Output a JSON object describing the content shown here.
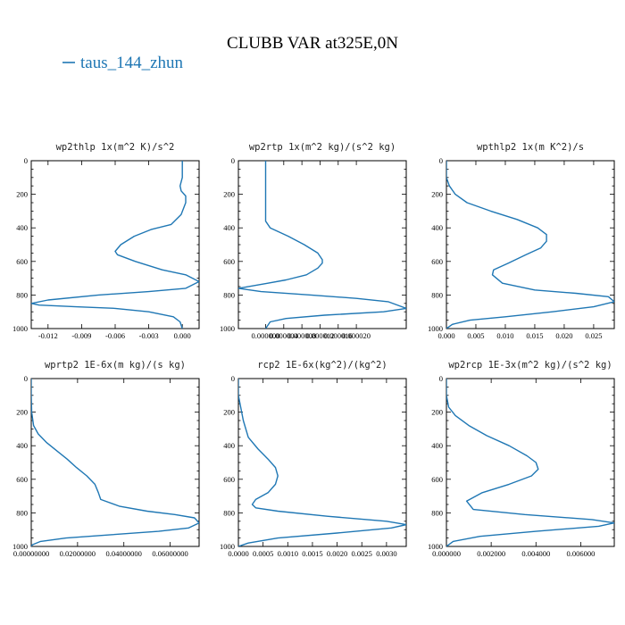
{
  "figure": {
    "title": "CLUBB VAR at325E,0N",
    "legend": {
      "label": "taus_144_zhun",
      "color": "#1f77b4",
      "placement": "top-left"
    }
  },
  "chart_data": [
    {
      "type": "line",
      "title": "wp2thlp  1x(m^2 K)/s^2",
      "xlim": [
        -0.0135,
        0.0015
      ],
      "ylim": [
        1000,
        0
      ],
      "xticks": [
        -0.012,
        -0.009,
        -0.006,
        -0.003,
        0.0
      ],
      "xtick_labels": [
        "-0.012",
        "-0.009",
        "-0.006",
        "-0.003",
        "0.000"
      ],
      "yticks": [
        0,
        200,
        400,
        600,
        800,
        1000
      ],
      "series": [
        {
          "x": [
            0.0,
            0.0,
            -0.0002,
            -0.0001,
            0.0003,
            0.0003,
            -0.0001,
            -0.001,
            -0.0028,
            -0.0043,
            -0.0055,
            -0.006,
            -0.0058,
            -0.0042,
            -0.0018,
            0.0003,
            0.0015,
            0.0003,
            -0.003,
            -0.0075,
            -0.012,
            -0.0135,
            -0.0128,
            -0.0095,
            -0.006,
            -0.003,
            -0.0008,
            -0.0002,
            0.0
          ],
          "y": [
            0,
            100,
            150,
            180,
            210,
            250,
            320,
            380,
            410,
            450,
            500,
            540,
            560,
            600,
            650,
            680,
            720,
            760,
            780,
            800,
            830,
            850,
            860,
            870,
            880,
            900,
            930,
            960,
            1000
          ]
        }
      ]
    },
    {
      "type": "line",
      "title": "wp2rtp  1x(m^2 kg)/(s^2 kg)",
      "xlim": [
        -6e-06,
        3.1e-05
      ],
      "ylim": [
        1000,
        0
      ],
      "xticks": [
        0.0,
        4e-06,
        8e-06,
        1.2e-05,
        1.6e-05,
        2e-05
      ],
      "xtick_labels": [
        "0.000000",
        "0.000004",
        "0.000008",
        "0.000012",
        "0.000016",
        "0.000020"
      ],
      "yticks": [
        0,
        200,
        400,
        600,
        800,
        1000
      ],
      "series": [
        {
          "x": [
            0.0,
            0.0,
            0.0,
            0.0,
            0.0,
            0.0,
            1e-06,
            5e-06,
            8.5e-06,
            1.15e-05,
            1.25e-05,
            1.25e-05,
            1.15e-05,
            9e-06,
            4.5e-06,
            5e-07,
            -6e-06,
            -1e-06,
            1e-05,
            2e-05,
            2.7e-05,
            3.1e-05,
            2.6e-05,
            1.3e-05,
            4.5e-06,
            1e-06,
            0.0
          ],
          "y": [
            0,
            100,
            200,
            280,
            320,
            360,
            400,
            450,
            500,
            550,
            590,
            610,
            640,
            680,
            710,
            730,
            760,
            780,
            800,
            820,
            840,
            880,
            900,
            920,
            940,
            960,
            1000
          ]
        }
      ]
    },
    {
      "type": "line",
      "title": "wpthlp2  1x(m K^2)/s",
      "xlim": [
        0.0,
        0.0285
      ],
      "ylim": [
        1000,
        0
      ],
      "xticks": [
        0.0,
        0.005,
        0.01,
        0.015,
        0.02,
        0.025
      ],
      "xtick_labels": [
        "0.000",
        "0.005",
        "0.010",
        "0.015",
        "0.020",
        "0.025"
      ],
      "yticks": [
        0,
        200,
        400,
        600,
        800,
        1000
      ],
      "series": [
        {
          "x": [
            0.0,
            0.0,
            0.0005,
            0.0015,
            0.0035,
            0.0075,
            0.012,
            0.0155,
            0.017,
            0.017,
            0.016,
            0.0135,
            0.0105,
            0.008,
            0.0078,
            0.0095,
            0.015,
            0.022,
            0.0275,
            0.0285,
            0.025,
            0.018,
            0.01,
            0.004,
            0.001,
            0.0
          ],
          "y": [
            0,
            100,
            150,
            200,
            250,
            300,
            350,
            400,
            440,
            480,
            520,
            560,
            610,
            650,
            680,
            730,
            770,
            790,
            810,
            840,
            870,
            900,
            930,
            950,
            975,
            1000
          ]
        }
      ]
    },
    {
      "type": "line",
      "title": "wprtp2  1E-6x(m kg)/(s kg)",
      "xlim": [
        0.0,
        0.0725
      ],
      "ylim": [
        1000,
        0
      ],
      "xticks": [
        0.0,
        0.02,
        0.04,
        0.06
      ],
      "xtick_labels": [
        "0.00000000",
        "0.02000000",
        "0.04000000",
        "0.06000000"
      ],
      "yticks": [
        0,
        200,
        400,
        600,
        800,
        1000
      ],
      "series": [
        {
          "x": [
            0.0,
            0.0,
            0.0002,
            0.001,
            0.003,
            0.0065,
            0.011,
            0.0155,
            0.0195,
            0.024,
            0.0275,
            0.029,
            0.03,
            0.038,
            0.05,
            0.062,
            0.0705,
            0.0725,
            0.068,
            0.055,
            0.035,
            0.015,
            0.004,
            0.0005,
            0.0
          ],
          "y": [
            0,
            100,
            200,
            280,
            330,
            380,
            430,
            480,
            530,
            580,
            630,
            680,
            720,
            760,
            790,
            810,
            830,
            860,
            890,
            910,
            930,
            950,
            970,
            990,
            1000
          ]
        }
      ]
    },
    {
      "type": "line",
      "title": "rcp2  1E-6x(kg^2)/(kg^2)",
      "xlim": [
        0.0,
        0.0034
      ],
      "ylim": [
        1000,
        0
      ],
      "xticks": [
        0.0,
        0.0005,
        0.001,
        0.0015,
        0.002,
        0.0025,
        0.003
      ],
      "xtick_labels": [
        "0.0000",
        "0.0005",
        "0.0010",
        "0.0015",
        "0.0020",
        "0.0025",
        "0.0030"
      ],
      "yticks": [
        0,
        200,
        400,
        600,
        800,
        1000
      ],
      "series": [
        {
          "x": [
            0.0,
            0.0,
            0.0001,
            0.0002,
            0.0004,
            0.0006,
            0.00075,
            0.0008,
            0.00075,
            0.0006,
            0.00035,
            0.00028,
            0.00035,
            0.0008,
            0.0018,
            0.003,
            0.0034,
            0.0031,
            0.002,
            0.0008,
            0.0002,
            0.0
          ],
          "y": [
            0,
            100,
            250,
            350,
            420,
            480,
            530,
            580,
            630,
            680,
            720,
            750,
            770,
            790,
            820,
            850,
            870,
            890,
            920,
            950,
            980,
            1000
          ]
        }
      ]
    },
    {
      "type": "line",
      "title": "wp2rcp  1E-3x(m^2 kg)/(s^2 kg)",
      "xlim": [
        0.0,
        0.0075
      ],
      "ylim": [
        1000,
        0
      ],
      "xticks": [
        0.0,
        0.002,
        0.004,
        0.006
      ],
      "xtick_labels": [
        "0.000000",
        "0.002000",
        "0.004000",
        "0.006000"
      ],
      "yticks": [
        0,
        200,
        400,
        600,
        800,
        1000
      ],
      "series": [
        {
          "x": [
            0.0,
            0.0,
            0.0001,
            0.0004,
            0.001,
            0.0018,
            0.0028,
            0.0036,
            0.004,
            0.0041,
            0.0038,
            0.0028,
            0.0016,
            0.0009,
            0.0012,
            0.0035,
            0.0065,
            0.0075,
            0.0068,
            0.004,
            0.0015,
            0.0003,
            0.0
          ],
          "y": [
            0,
            100,
            170,
            220,
            280,
            340,
            400,
            460,
            500,
            540,
            580,
            630,
            680,
            730,
            780,
            810,
            840,
            860,
            880,
            910,
            940,
            970,
            1000
          ]
        }
      ]
    }
  ]
}
